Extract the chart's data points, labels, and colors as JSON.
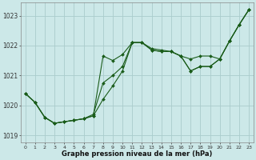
{
  "background_color": "#cce8e8",
  "grid_color": "#aacccc",
  "line_color": "#1a5c1a",
  "xlabel": "Graphe pression niveau de la mer (hPa)",
  "ylabel_ticks": [
    1019,
    1020,
    1021,
    1022,
    1023
  ],
  "xlim": [
    -0.5,
    23.5
  ],
  "ylim": [
    1018.75,
    1023.45
  ],
  "series1_x": [
    0,
    1,
    2,
    3,
    4,
    5,
    6,
    7,
    8,
    9,
    10,
    11,
    12,
    13,
    14,
    15,
    16,
    17,
    18,
    19,
    20,
    21,
    22,
    23
  ],
  "series1_y": [
    1020.4,
    1020.1,
    1019.6,
    1019.4,
    1019.45,
    1019.5,
    1019.55,
    1019.65,
    1020.2,
    1020.65,
    1021.15,
    1022.1,
    1022.1,
    1021.9,
    1021.85,
    1021.8,
    1021.65,
    1021.15,
    1021.3,
    1021.3,
    1021.55,
    1022.15,
    1022.7,
    1023.2
  ],
  "series2_x": [
    0,
    1,
    2,
    3,
    4,
    5,
    6,
    7,
    8,
    9,
    10,
    11,
    12,
    13,
    14,
    15,
    16,
    17,
    18,
    19,
    20,
    21,
    22,
    23
  ],
  "series2_y": [
    1020.4,
    1020.1,
    1019.6,
    1019.4,
    1019.45,
    1019.5,
    1019.55,
    1019.65,
    1021.65,
    1021.5,
    1021.7,
    1022.1,
    1022.1,
    1021.85,
    1021.8,
    1021.8,
    1021.65,
    1021.55,
    1021.65,
    1021.65,
    1021.55,
    1022.15,
    1022.7,
    1023.2
  ],
  "series3_x": [
    0,
    1,
    2,
    3,
    4,
    5,
    6,
    7,
    8,
    9,
    10,
    11,
    12,
    13,
    14,
    15,
    16,
    17,
    18,
    19,
    20,
    21,
    22,
    23
  ],
  "series3_y": [
    1020.4,
    1020.1,
    1019.6,
    1019.4,
    1019.45,
    1019.5,
    1019.55,
    1019.7,
    1020.75,
    1021.0,
    1021.3,
    1022.1,
    1022.1,
    1021.85,
    1021.8,
    1021.8,
    1021.65,
    1021.15,
    1021.3,
    1021.3,
    1021.55,
    1022.15,
    1022.7,
    1023.2
  ]
}
